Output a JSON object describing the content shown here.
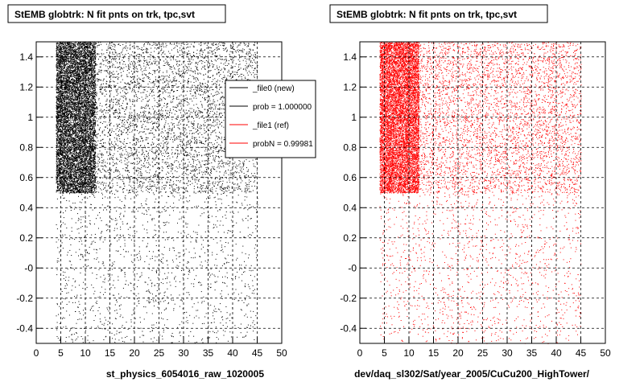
{
  "chart_data": [
    {
      "type": "scatter",
      "title": "StEMB globtrk: N fit pnts on trk, tpc,svt",
      "xlabel": "st_physics_6054016_raw_1020005",
      "ylabel": "",
      "xlim": [
        0,
        50
      ],
      "ylim": [
        -0.5,
        1.5
      ],
      "xticks": [
        "0",
        "5",
        "10",
        "15",
        "20",
        "25",
        "30",
        "35",
        "40",
        "45",
        "50"
      ],
      "yticks": [
        "-0.4",
        "-0.2",
        "-0",
        "0.2",
        "0.4",
        "0.6",
        "0.8",
        "1",
        "1.2",
        "1.4"
      ],
      "grid": true,
      "marker_color": "#000000",
      "legend_position": "top-right",
      "legend": [
        {
          "label": "_file0 (new)",
          "color": "#000000"
        },
        {
          "label": "prob = 1.000000",
          "color": "#000000"
        },
        {
          "label": "_file1 (ref)",
          "color": "#ff0000"
        },
        {
          "label": "probN = 0.99981",
          "color": "#ff0000"
        }
      ],
      "density_regions": [
        {
          "x": [
            4,
            12
          ],
          "y": [
            0.5,
            1.5
          ],
          "density": "very high"
        },
        {
          "x": [
            12,
            45
          ],
          "y": [
            0.5,
            1.5
          ],
          "density": "medium"
        },
        {
          "x": [
            4,
            45
          ],
          "y": [
            -0.5,
            0.5
          ],
          "density": "low"
        }
      ]
    },
    {
      "type": "scatter",
      "title": "StEMB globtrk: N fit pnts on trk, tpc,svt",
      "xlabel": "dev/daq_sl302/Sat/year_2005/CuCu200_HighTower/",
      "ylabel": "",
      "xlim": [
        0,
        50
      ],
      "ylim": [
        -0.5,
        1.5
      ],
      "xticks": [
        "0",
        "5",
        "10",
        "15",
        "20",
        "25",
        "30",
        "35",
        "40",
        "45",
        "50"
      ],
      "yticks": [
        "-0.4",
        "-0.2",
        "-0",
        "0.2",
        "0.4",
        "0.6",
        "0.8",
        "1",
        "1.2",
        "1.4"
      ],
      "grid": true,
      "marker_color": "#ff0000",
      "density_regions": [
        {
          "x": [
            4,
            12
          ],
          "y": [
            0.5,
            1.5
          ],
          "density": "very high"
        },
        {
          "x": [
            12,
            45
          ],
          "y": [
            0.5,
            1.5
          ],
          "density": "medium"
        },
        {
          "x": [
            4,
            45
          ],
          "y": [
            -0.5,
            0.5
          ],
          "density": "low"
        }
      ]
    }
  ]
}
